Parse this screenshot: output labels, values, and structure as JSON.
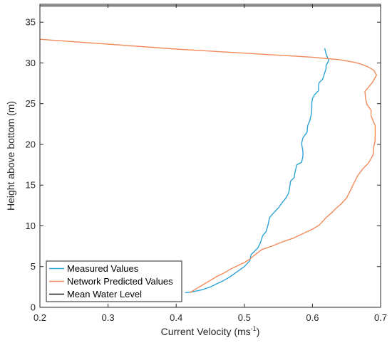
{
  "chart_data": {
    "type": "line",
    "xlabel": "Current Velocity (ms",
    "xlabel_sup": "-1",
    "xlabel_close": ")",
    "ylabel": "Height above bottom (m)",
    "xlim": [
      0.2,
      0.7
    ],
    "ylim": [
      0,
      37.2
    ],
    "xticks": [
      0.2,
      0.3,
      0.4,
      0.5,
      0.6,
      0.7
    ],
    "xtick_labels": [
      "0.2",
      "0.3",
      "0.4",
      "0.5",
      "0.6",
      "0.7"
    ],
    "yticks": [
      0,
      5,
      10,
      15,
      20,
      25,
      30,
      35
    ],
    "ytick_labels": [
      "0",
      "5",
      "10",
      "15",
      "20",
      "25",
      "30",
      "35"
    ],
    "grid": false,
    "legend_position": "bottom-left",
    "series": [
      {
        "name": "Measured Values",
        "color": "#2ea3d6",
        "points": [
          [
            0.413,
            1.8
          ],
          [
            0.42,
            1.85
          ],
          [
            0.43,
            2.0
          ],
          [
            0.44,
            2.2
          ],
          [
            0.45,
            2.5
          ],
          [
            0.46,
            2.9
          ],
          [
            0.47,
            3.3
          ],
          [
            0.48,
            3.8
          ],
          [
            0.49,
            4.4
          ],
          [
            0.5,
            5.0
          ],
          [
            0.508,
            5.7
          ],
          [
            0.51,
            6.5
          ],
          [
            0.514,
            6.8
          ],
          [
            0.52,
            7.3
          ],
          [
            0.524,
            8.0
          ],
          [
            0.527,
            8.8
          ],
          [
            0.532,
            9.3
          ],
          [
            0.535,
            10.2
          ],
          [
            0.537,
            11.0
          ],
          [
            0.543,
            11.6
          ],
          [
            0.55,
            12.2
          ],
          [
            0.555,
            12.8
          ],
          [
            0.561,
            13.4
          ],
          [
            0.565,
            14.0
          ],
          [
            0.567,
            15.0
          ],
          [
            0.568,
            15.5
          ],
          [
            0.573,
            15.9
          ],
          [
            0.575,
            16.8
          ],
          [
            0.577,
            17.5
          ],
          [
            0.584,
            17.8
          ],
          [
            0.586,
            18.5
          ],
          [
            0.586,
            19.2
          ],
          [
            0.584,
            20.1
          ],
          [
            0.586,
            20.8
          ],
          [
            0.592,
            21.5
          ],
          [
            0.593,
            22.3
          ],
          [
            0.596,
            22.9
          ],
          [
            0.598,
            23.6
          ],
          [
            0.599,
            24.3
          ],
          [
            0.599,
            25.0
          ],
          [
            0.6,
            25.6
          ],
          [
            0.603,
            26.1
          ],
          [
            0.609,
            26.6
          ],
          [
            0.609,
            27.3
          ],
          [
            0.61,
            27.6
          ],
          [
            0.615,
            28.0
          ],
          [
            0.618,
            28.8
          ],
          [
            0.62,
            29.3
          ],
          [
            0.62,
            29.7
          ],
          [
            0.624,
            30.3
          ],
          [
            0.62,
            31.1
          ],
          [
            0.618,
            31.8
          ]
        ]
      },
      {
        "name": "Network Predicted Values",
        "color": "#f28a5a",
        "points": [
          [
            0.42,
            1.8
          ],
          [
            0.43,
            2.3
          ],
          [
            0.44,
            2.8
          ],
          [
            0.45,
            3.3
          ],
          [
            0.46,
            3.8
          ],
          [
            0.47,
            4.2
          ],
          [
            0.48,
            4.7
          ],
          [
            0.49,
            5.1
          ],
          [
            0.5,
            5.5
          ],
          [
            0.508,
            5.9
          ],
          [
            0.512,
            6.2
          ],
          [
            0.518,
            6.6
          ],
          [
            0.526,
            7.1
          ],
          [
            0.54,
            7.5
          ],
          [
            0.555,
            8.0
          ],
          [
            0.572,
            8.5
          ],
          [
            0.585,
            9.0
          ],
          [
            0.6,
            9.6
          ],
          [
            0.61,
            10.1
          ],
          [
            0.62,
            11.0
          ],
          [
            0.628,
            11.6
          ],
          [
            0.634,
            12.1
          ],
          [
            0.642,
            12.7
          ],
          [
            0.65,
            13.4
          ],
          [
            0.656,
            14.4
          ],
          [
            0.66,
            15.1
          ],
          [
            0.666,
            16.1
          ],
          [
            0.674,
            17.0
          ],
          [
            0.682,
            17.7
          ],
          [
            0.689,
            18.7
          ],
          [
            0.69,
            19.7
          ],
          [
            0.692,
            20.5
          ],
          [
            0.692,
            21.5
          ],
          [
            0.692,
            22.3
          ],
          [
            0.689,
            22.9
          ],
          [
            0.686,
            23.5
          ],
          [
            0.686,
            24.2
          ],
          [
            0.68,
            24.9
          ],
          [
            0.678,
            25.6
          ],
          [
            0.677,
            26.5
          ],
          [
            0.682,
            27.0
          ],
          [
            0.688,
            27.6
          ],
          [
            0.694,
            28.5
          ],
          [
            0.69,
            29.1
          ],
          [
            0.682,
            29.5
          ],
          [
            0.67,
            29.9
          ],
          [
            0.66,
            30.1
          ],
          [
            0.64,
            30.4
          ],
          [
            0.6,
            30.7
          ],
          [
            0.5,
            31.2
          ],
          [
            0.4,
            31.7
          ],
          [
            0.3,
            32.3
          ],
          [
            0.2,
            32.9
          ]
        ]
      },
      {
        "name": "Mean Water Level",
        "color": "#1a1a1a",
        "points": [
          [
            0.2,
            37.0
          ],
          [
            0.7,
            37.0
          ]
        ]
      }
    ]
  }
}
